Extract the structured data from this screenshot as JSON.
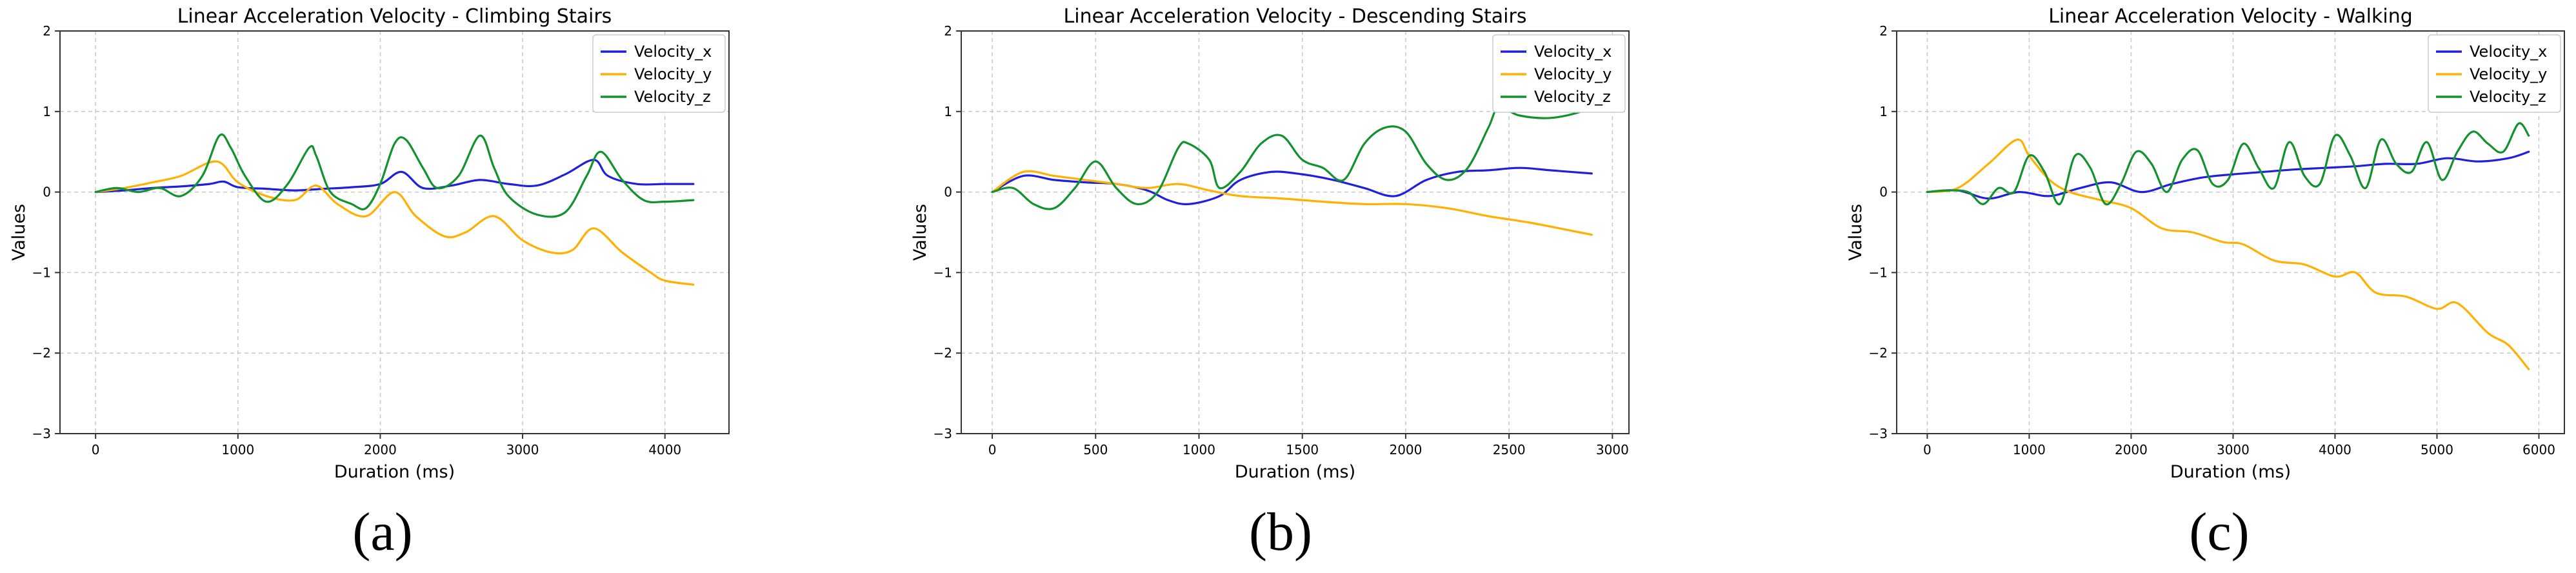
{
  "colors": {
    "velocity_x": "#1f1fe0",
    "velocity_y": "#ffb000",
    "velocity_z": "#12922e"
  },
  "chart_data": [
    {
      "type": "line",
      "panel_label": "(a)",
      "title": "Linear Acceleration Velocity - Climbing Stairs",
      "xlabel": "Duration (ms)",
      "ylabel": "Values",
      "xlim": [
        -250,
        4450
      ],
      "ylim": [
        -3,
        2
      ],
      "xticks": [
        0,
        1000,
        2000,
        3000,
        4000
      ],
      "yticks": [
        -3,
        -2,
        -1,
        0,
        1,
        2
      ],
      "grid": true,
      "legend_position": "top-right",
      "series": [
        {
          "name": "Velocity_x",
          "color": "#1f1fe0",
          "x": [
            0,
            200,
            400,
            600,
            800,
            900,
            1000,
            1200,
            1400,
            1600,
            1800,
            2000,
            2150,
            2300,
            2500,
            2700,
            2900,
            3100,
            3300,
            3500,
            3600,
            3800,
            4000,
            4200
          ],
          "y": [
            0,
            0.02,
            0.05,
            0.07,
            0.1,
            0.13,
            0.06,
            0.04,
            0.02,
            0.04,
            0.06,
            0.1,
            0.25,
            0.05,
            0.08,
            0.15,
            0.1,
            0.08,
            0.22,
            0.4,
            0.2,
            0.1,
            0.1,
            0.1
          ]
        },
        {
          "name": "Velocity_y",
          "color": "#ffb000",
          "x": [
            0,
            200,
            400,
            600,
            850,
            1000,
            1200,
            1400,
            1550,
            1700,
            1900,
            2100,
            2250,
            2450,
            2600,
            2800,
            3000,
            3200,
            3350,
            3500,
            3700,
            3900,
            4000,
            4200
          ],
          "y": [
            0,
            0.05,
            0.12,
            0.2,
            0.38,
            0.12,
            -0.05,
            -0.1,
            0.08,
            -0.15,
            -0.3,
            0.0,
            -0.3,
            -0.55,
            -0.5,
            -0.3,
            -0.6,
            -0.75,
            -0.72,
            -0.45,
            -0.75,
            -1.0,
            -1.1,
            -1.15
          ]
        },
        {
          "name": "Velocity_z",
          "color": "#12922e",
          "x": [
            0,
            150,
            300,
            450,
            600,
            750,
            870,
            950,
            1050,
            1200,
            1350,
            1500,
            1550,
            1650,
            1800,
            1900,
            2000,
            2100,
            2180,
            2300,
            2400,
            2550,
            2700,
            2800,
            2900,
            3100,
            3300,
            3450,
            3550,
            3700,
            3850,
            4000,
            4200
          ],
          "y": [
            0,
            0.05,
            0.0,
            0.05,
            -0.05,
            0.2,
            0.7,
            0.55,
            0.2,
            -0.12,
            0.1,
            0.55,
            0.45,
            0.0,
            -0.15,
            -0.2,
            0.1,
            0.6,
            0.65,
            0.3,
            0.05,
            0.2,
            0.7,
            0.3,
            -0.05,
            -0.28,
            -0.25,
            0.2,
            0.5,
            0.15,
            -0.1,
            -0.12,
            -0.1
          ]
        }
      ]
    },
    {
      "type": "line",
      "panel_label": "(b)",
      "title": "Linear Acceleration Velocity - Descending Stairs",
      "xlabel": "Duration (ms)",
      "ylabel": "Values",
      "xlim": [
        -150,
        3080
      ],
      "ylim": [
        -3,
        2
      ],
      "xticks": [
        0,
        500,
        1000,
        1500,
        2000,
        2500,
        3000
      ],
      "yticks": [
        -3,
        -2,
        -1,
        0,
        1,
        2
      ],
      "grid": true,
      "legend_position": "top-right",
      "series": [
        {
          "name": "Velocity_x",
          "color": "#1f1fe0",
          "x": [
            0,
            150,
            300,
            450,
            600,
            750,
            850,
            950,
            1100,
            1200,
            1350,
            1500,
            1650,
            1800,
            1950,
            2100,
            2250,
            2400,
            2550,
            2700,
            2900
          ],
          "y": [
            0,
            0.2,
            0.15,
            0.12,
            0.1,
            0.02,
            -0.1,
            -0.15,
            -0.05,
            0.15,
            0.25,
            0.22,
            0.15,
            0.05,
            -0.05,
            0.15,
            0.25,
            0.27,
            0.3,
            0.27,
            0.23
          ]
        },
        {
          "name": "Velocity_y",
          "color": "#ffb000",
          "x": [
            0,
            150,
            300,
            450,
            600,
            750,
            900,
            1050,
            1200,
            1400,
            1600,
            1800,
            2000,
            2200,
            2400,
            2600,
            2800,
            2900
          ],
          "y": [
            0,
            0.25,
            0.2,
            0.15,
            0.1,
            0.05,
            0.1,
            0.02,
            -0.05,
            -0.08,
            -0.12,
            -0.15,
            -0.15,
            -0.2,
            -0.3,
            -0.38,
            -0.48,
            -0.53
          ]
        },
        {
          "name": "Velocity_z",
          "color": "#12922e",
          "x": [
            0,
            100,
            200,
            300,
            400,
            500,
            600,
            700,
            800,
            900,
            950,
            1050,
            1100,
            1200,
            1300,
            1400,
            1500,
            1600,
            1700,
            1800,
            1900,
            2000,
            2100,
            2200,
            2300,
            2400,
            2450,
            2550,
            2700,
            2850,
            2900
          ],
          "y": [
            0,
            0.05,
            -0.15,
            -0.2,
            0.05,
            0.38,
            0.05,
            -0.15,
            0.0,
            0.55,
            0.6,
            0.4,
            0.05,
            0.25,
            0.6,
            0.7,
            0.4,
            0.3,
            0.15,
            0.6,
            0.8,
            0.75,
            0.35,
            0.15,
            0.3,
            0.8,
            1.05,
            0.95,
            0.92,
            1.0,
            1.1
          ]
        }
      ]
    },
    {
      "type": "line",
      "panel_label": "(c)",
      "title": "Linear Acceleration Velocity - Walking",
      "xlabel": "Duration (ms)",
      "ylabel": "Values",
      "xlim": [
        -300,
        6250
      ],
      "ylim": [
        -3,
        2
      ],
      "xticks": [
        0,
        1000,
        2000,
        3000,
        4000,
        5000,
        6000
      ],
      "yticks": [
        -3,
        -2,
        -1,
        0,
        1,
        2
      ],
      "grid": true,
      "legend_position": "top-right",
      "series": [
        {
          "name": "Velocity_x",
          "color": "#1f1fe0",
          "x": [
            0,
            300,
            600,
            900,
            1200,
            1500,
            1800,
            2100,
            2400,
            2700,
            3000,
            3300,
            3600,
            3900,
            4200,
            4500,
            4800,
            5100,
            5400,
            5700,
            5900
          ],
          "y": [
            0,
            0.02,
            -0.08,
            0.0,
            -0.05,
            0.05,
            0.12,
            0.0,
            0.1,
            0.18,
            0.22,
            0.25,
            0.28,
            0.3,
            0.32,
            0.35,
            0.35,
            0.42,
            0.38,
            0.42,
            0.5
          ]
        },
        {
          "name": "Velocity_y",
          "color": "#ffb000",
          "x": [
            0,
            300,
            600,
            880,
            1000,
            1200,
            1400,
            1700,
            2000,
            2300,
            2600,
            2900,
            3100,
            3400,
            3700,
            4000,
            4200,
            4400,
            4700,
            5000,
            5200,
            5500,
            5700,
            5900
          ],
          "y": [
            0,
            0.05,
            0.35,
            0.65,
            0.45,
            0.15,
            0.0,
            -0.1,
            -0.2,
            -0.45,
            -0.5,
            -0.62,
            -0.65,
            -0.85,
            -0.9,
            -1.05,
            -1.0,
            -1.25,
            -1.3,
            -1.45,
            -1.38,
            -1.75,
            -1.9,
            -2.2
          ]
        },
        {
          "name": "Velocity_z",
          "color": "#12922e",
          "x": [
            0,
            200,
            400,
            550,
            700,
            850,
            1000,
            1150,
            1300,
            1450,
            1600,
            1750,
            1900,
            2050,
            2200,
            2350,
            2500,
            2650,
            2800,
            2950,
            3100,
            3250,
            3400,
            3550,
            3700,
            3850,
            4000,
            4150,
            4300,
            4450,
            4600,
            4750,
            4900,
            5050,
            5200,
            5350,
            5500,
            5650,
            5800,
            5900
          ],
          "y": [
            0,
            0.02,
            0.0,
            -0.15,
            0.05,
            0.0,
            0.45,
            0.25,
            -0.15,
            0.45,
            0.3,
            -0.15,
            0.1,
            0.5,
            0.35,
            0.0,
            0.4,
            0.52,
            0.1,
            0.15,
            0.6,
            0.3,
            0.05,
            0.62,
            0.2,
            0.1,
            0.7,
            0.45,
            0.05,
            0.65,
            0.35,
            0.25,
            0.62,
            0.15,
            0.5,
            0.75,
            0.6,
            0.5,
            0.85,
            0.7
          ]
        }
      ]
    }
  ]
}
